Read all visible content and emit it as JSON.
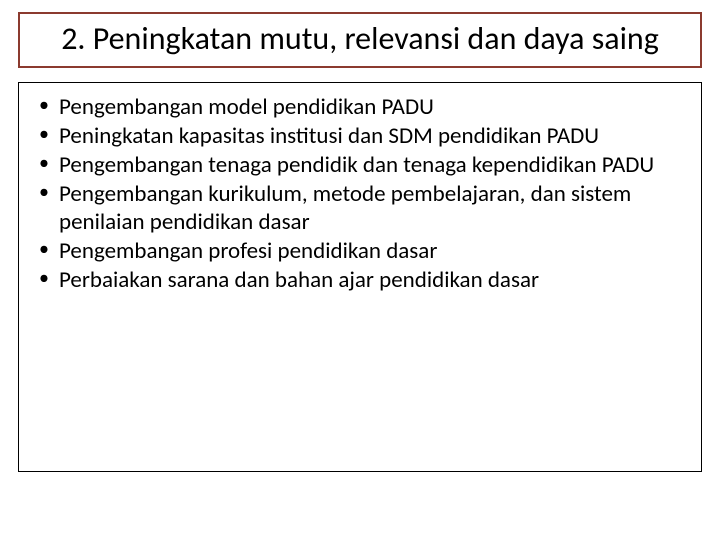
{
  "slide": {
    "title": "2. Peningkatan mutu, relevansi dan daya saing",
    "title_border_color": "#8b3a2f",
    "title_fontsize": 32,
    "body_border_color": "#000000",
    "body_fontsize": 23,
    "background_color": "#ffffff",
    "text_color": "#000000",
    "bullets": [
      "Pengembangan model pendidikan PADU",
      "Peningkatan kapasitas institusi dan SDM pendidikan PADU",
      "Pengembangan tenaga pendidik dan tenaga kependidikan PADU",
      "Pengembangan kurikulum, metode pembelajaran, dan sistem penilaian pendidikan dasar",
      "Pengembangan profesi pendidikan dasar",
      "Perbaiakan sarana dan bahan ajar pendidikan dasar"
    ]
  }
}
